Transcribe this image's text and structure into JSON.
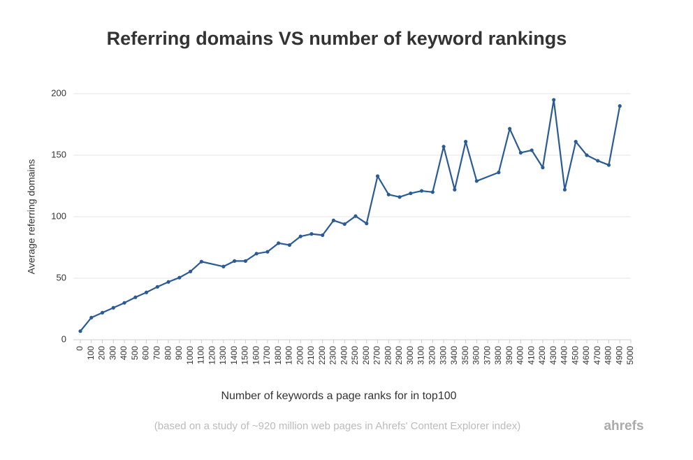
{
  "chart_data": {
    "type": "line",
    "title": "Referring domains VS number of keyword rankings",
    "x_label": "Number of keywords a page ranks for in top100",
    "y_label": "Average referring domains",
    "note": "(based on a study of ~920 million web pages in Ahrefs' Content Explorer index)",
    "brand": "ahrefs",
    "xlim": [
      0,
      5000
    ],
    "xticks": [
      0,
      100,
      200,
      300,
      400,
      500,
      600,
      700,
      800,
      900,
      1000,
      1100,
      1200,
      1300,
      1400,
      1500,
      1600,
      1700,
      1800,
      1900,
      2000,
      2100,
      2200,
      2300,
      2400,
      2500,
      2600,
      2700,
      2800,
      2900,
      3000,
      3100,
      3200,
      3300,
      3400,
      3500,
      3600,
      3700,
      3800,
      3900,
      4000,
      4100,
      4200,
      4300,
      4400,
      4500,
      4600,
      4700,
      4800,
      4900,
      5000
    ],
    "ylim": [
      0,
      200
    ],
    "yticks": [
      0,
      50,
      100,
      150,
      200
    ],
    "grid": true,
    "series": [
      {
        "name": "Average referring domains",
        "color": "#2b5b94",
        "x": [
          0,
          100,
          200,
          300,
          400,
          500,
          600,
          700,
          800,
          900,
          1000,
          1100,
          1300,
          1400,
          1500,
          1600,
          1700,
          1800,
          1900,
          2000,
          2100,
          2200,
          2300,
          2400,
          2500,
          2600,
          2700,
          2800,
          2900,
          3000,
          3100,
          3200,
          3300,
          3400,
          3500,
          3600,
          3800,
          3900,
          4000,
          4100,
          4200,
          4300,
          4400,
          4500,
          4600,
          4700,
          4800,
          4900
        ],
        "values": [
          7,
          18,
          22,
          26,
          30,
          34.5,
          38.5,
          43,
          47,
          50.5,
          55.5,
          63.5,
          59.5,
          64,
          64,
          70,
          71.5,
          78.5,
          77,
          84,
          86,
          85,
          97,
          94,
          100.5,
          94.5,
          133,
          118,
          116,
          119,
          121,
          120,
          157,
          122,
          161,
          129,
          136,
          171.5,
          152,
          154,
          140,
          195,
          122,
          161,
          150,
          145.5,
          142,
          190
        ]
      }
    ]
  }
}
